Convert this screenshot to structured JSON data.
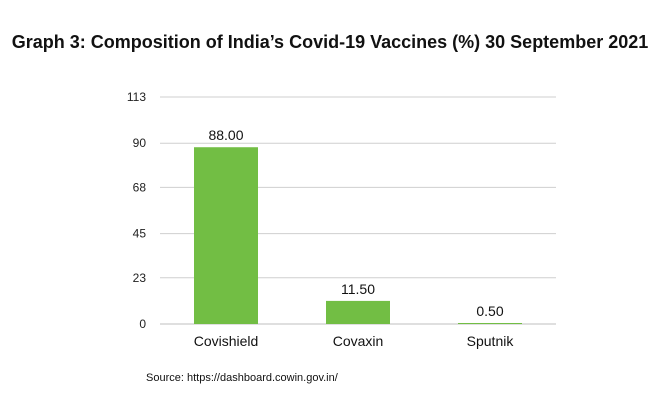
{
  "title": "Graph 3: Composition of India’s Covid-19 Vaccines (%) 30 September 2021",
  "source": "Source: https://dashboard.cowin.gov.in/",
  "colors": {
    "bar": "#72BE44",
    "grid": "#cfcfcf",
    "axis": "#bfbfbf"
  },
  "chart_data": {
    "type": "bar",
    "categories": [
      "Covishield",
      "Covaxin",
      "Sputnik"
    ],
    "values": [
      88.0,
      11.5,
      0.5
    ],
    "value_labels": [
      "88.00",
      "11.50",
      "0.50"
    ],
    "yticks": [
      0,
      23,
      45,
      68,
      90,
      113
    ],
    "ylim": [
      0,
      113
    ],
    "grid": true,
    "legend": "none",
    "xlabel": "",
    "ylabel": ""
  }
}
